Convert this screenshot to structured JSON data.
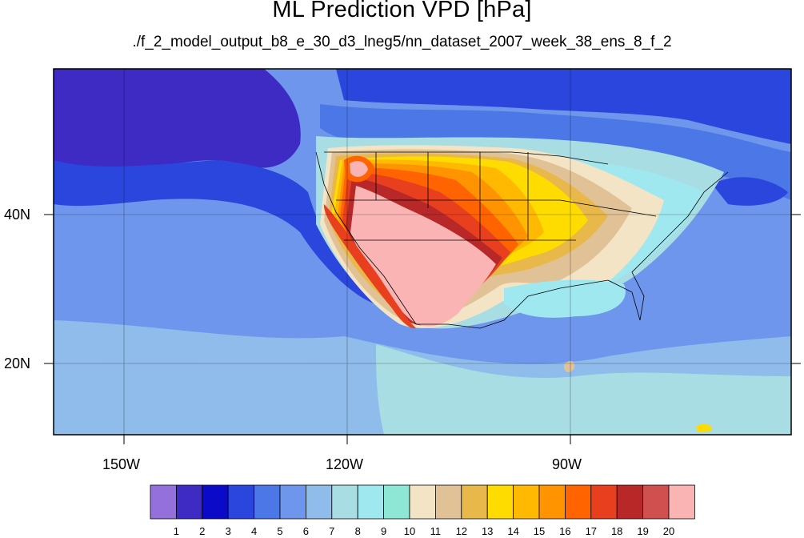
{
  "title": "ML Prediction VPD [hPa]",
  "subtitle": "./f_2_model_output_b8_e_30_d3_lneg5/nn_dataset_2007_week_38_ens_8_f_2",
  "longitude_labels": [
    "150W",
    "120W",
    "90W"
  ],
  "latitude_labels": [
    "40N",
    "20N"
  ],
  "colorbar": {
    "labels": [
      "1",
      "2",
      "3",
      "4",
      "5",
      "6",
      "7",
      "8",
      "9",
      "10",
      "11",
      "12",
      "13",
      "14",
      "15",
      "16",
      "17",
      "18",
      "19",
      "20"
    ],
    "colors": [
      "#9370db",
      "#3d2bc4",
      "#0a0ac8",
      "#2a46dc",
      "#4b78e6",
      "#6e96ec",
      "#8fbcea",
      "#a8dde3",
      "#a0e8ef",
      "#8ee6d4",
      "#f2e4c4",
      "#e1c296",
      "#e8b84a",
      "#ffdc00",
      "#ffb900",
      "#ff9400",
      "#ff6400",
      "#e8401e",
      "#b82828",
      "#d05050",
      "#fab4b4"
    ]
  },
  "map_colors": {
    "ocean_deep": "#3d2bc4",
    "ocean": "#2a46dc",
    "ocean_mid": "#4b78e6",
    "ocean_light": "#6e96ec",
    "ocean_pale": "#8fbcea",
    "cyan": "#a8dde3",
    "aqua": "#a0e8ef",
    "mint": "#8ee6d4",
    "tan": "#f2e4c4",
    "khaki": "#e1c296",
    "gold": "#e8b84a",
    "yellow": "#ffdc00",
    "amber": "#ffb900",
    "orange": "#ff9400",
    "deep_orange": "#ff6400",
    "red": "#e8401e",
    "dark_red": "#b82828",
    "rose": "#d05050",
    "pink": "#fab4b4"
  }
}
